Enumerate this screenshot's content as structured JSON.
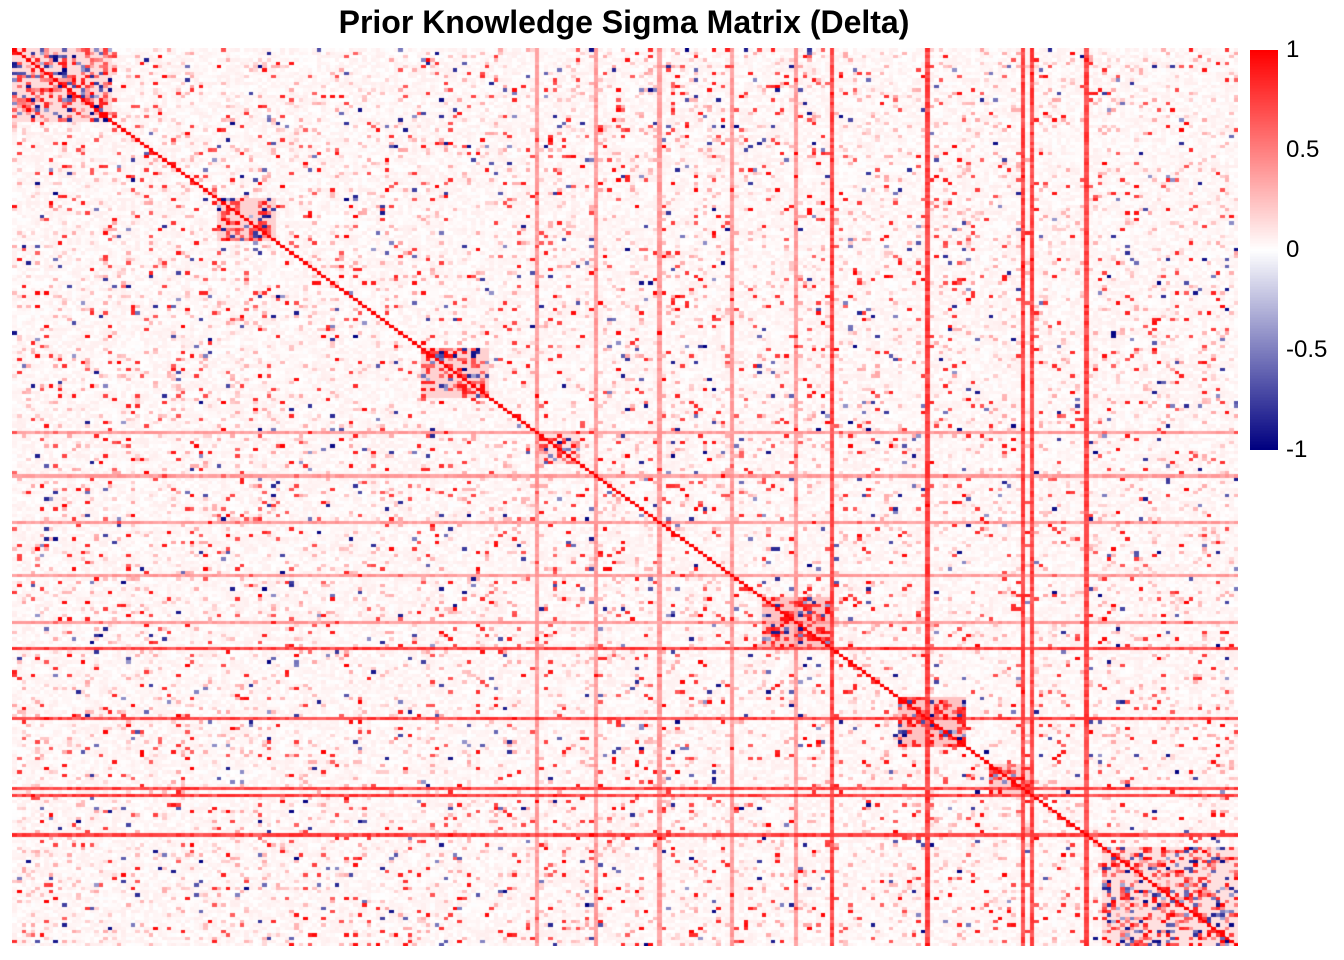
{
  "chart_data": {
    "type": "heatmap",
    "title": "Prior Knowledge Sigma Matrix (Delta)",
    "xlabel": "",
    "ylabel": "",
    "n_rows": 270,
    "n_cols": 270,
    "diagonal_value": 1,
    "background_mean": 0.03,
    "color_scale": {
      "min": -1,
      "max": 1,
      "low_color": "#000080",
      "mid_color": "#ffffff",
      "high_color": "#ff0000",
      "ticks": [
        {
          "value": 1,
          "label": "1"
        },
        {
          "value": 0.5,
          "label": "0.5"
        },
        {
          "value": 0,
          "label": "0"
        },
        {
          "value": -0.5,
          "label": "-0.5"
        },
        {
          "value": -1,
          "label": "-1"
        }
      ]
    },
    "blocks": [
      {
        "start": 0,
        "end": 22,
        "mean": 0.35
      },
      {
        "start": 45,
        "end": 58,
        "mean": 0.45
      },
      {
        "start": 90,
        "end": 105,
        "mean": 0.45
      },
      {
        "start": 115,
        "end": 125,
        "mean": 0.3
      },
      {
        "start": 165,
        "end": 180,
        "mean": 0.6
      },
      {
        "start": 195,
        "end": 210,
        "mean": 0.6
      },
      {
        "start": 215,
        "end": 225,
        "mean": 0.5
      },
      {
        "start": 240,
        "end": 270,
        "mean": 0.3
      }
    ],
    "full_lines": [
      {
        "index": 115,
        "value": 0.45
      },
      {
        "index": 128,
        "value": 0.45
      },
      {
        "index": 142,
        "value": 0.45
      },
      {
        "index": 158,
        "value": 0.45
      },
      {
        "index": 172,
        "value": 0.45
      },
      {
        "index": 180,
        "value": 0.85
      },
      {
        "index": 201,
        "value": 0.85
      },
      {
        "index": 222,
        "value": 0.85
      },
      {
        "index": 224,
        "value": 0.85
      },
      {
        "index": 236,
        "value": 0.85
      }
    ],
    "legend_position": "right"
  }
}
